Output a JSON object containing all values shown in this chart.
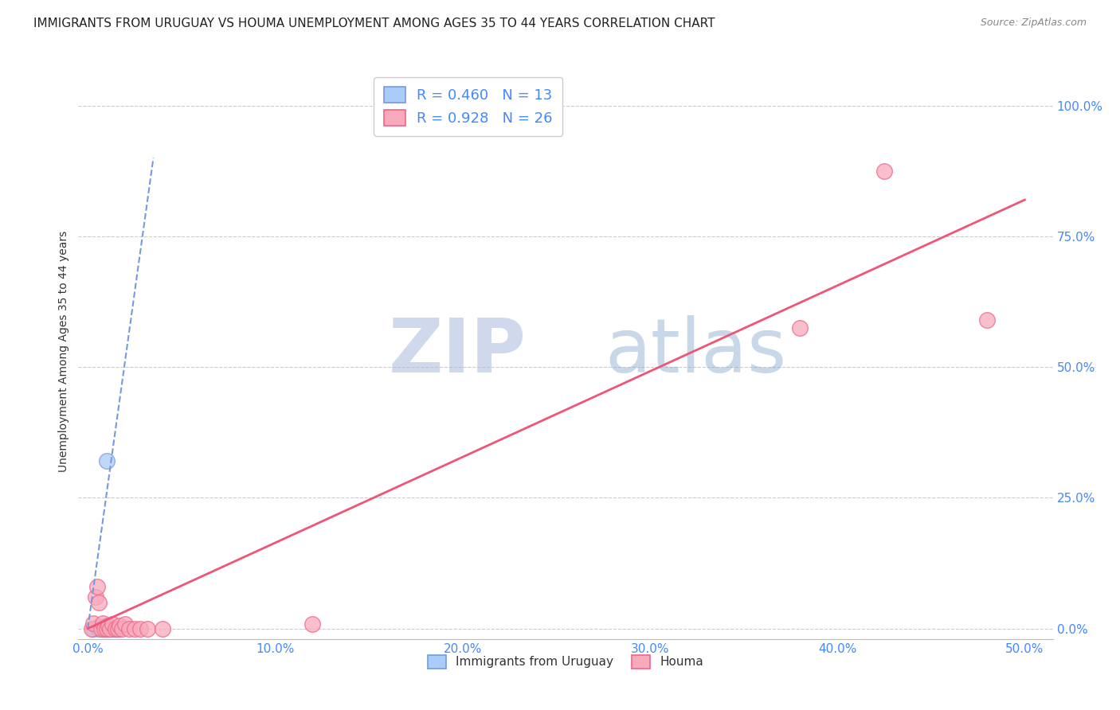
{
  "title": "IMMIGRANTS FROM URUGUAY VS HOUMA UNEMPLOYMENT AMONG AGES 35 TO 44 YEARS CORRELATION CHART",
  "source": "Source: ZipAtlas.com",
  "xlabel_ticks": [
    "0.0%",
    "10.0%",
    "20.0%",
    "30.0%",
    "40.0%",
    "50.0%"
  ],
  "ylabel_ticks": [
    "0.0%",
    "25.0%",
    "50.0%",
    "75.0%",
    "100.0%"
  ],
  "xlabel_vals": [
    0.0,
    0.1,
    0.2,
    0.3,
    0.4,
    0.5
  ],
  "ylabel_vals": [
    0.0,
    0.25,
    0.5,
    0.75,
    1.0
  ],
  "ylabel_label": "Unemployment Among Ages 35 to 44 years",
  "xlim": [
    -0.005,
    0.515
  ],
  "ylim": [
    -0.02,
    1.08
  ],
  "watermark_zip": "ZIP",
  "watermark_atlas": "atlas",
  "legend_blue_label": "Immigrants from Uruguay",
  "legend_pink_label": "Houma",
  "blue_R": "0.460",
  "blue_N": "13",
  "pink_R": "0.928",
  "pink_N": "26",
  "blue_scatter_x": [
    0.003,
    0.005,
    0.006,
    0.007,
    0.008,
    0.009,
    0.01,
    0.011,
    0.012,
    0.013,
    0.015,
    0.016,
    0.01
  ],
  "blue_scatter_y": [
    0.0,
    0.002,
    0.0,
    0.003,
    0.0,
    0.002,
    0.005,
    0.0,
    0.002,
    0.0,
    0.0,
    0.0,
    0.32
  ],
  "pink_scatter_x": [
    0.002,
    0.003,
    0.004,
    0.005,
    0.006,
    0.007,
    0.008,
    0.009,
    0.01,
    0.011,
    0.012,
    0.013,
    0.015,
    0.016,
    0.017,
    0.018,
    0.02,
    0.022,
    0.025,
    0.028,
    0.032,
    0.04,
    0.12,
    0.38,
    0.425,
    0.48
  ],
  "pink_scatter_y": [
    0.0,
    0.01,
    0.06,
    0.08,
    0.05,
    0.0,
    0.01,
    0.0,
    0.0,
    0.005,
    0.0,
    0.008,
    0.0,
    0.0,
    0.005,
    0.0,
    0.008,
    0.0,
    0.0,
    0.0,
    0.0,
    0.0,
    0.008,
    0.575,
    0.875,
    0.59
  ],
  "blue_line_x": [
    0.0,
    0.035
  ],
  "blue_line_y": [
    0.0,
    0.9
  ],
  "pink_line_x": [
    0.0,
    0.5
  ],
  "pink_line_y": [
    0.0,
    0.82
  ],
  "grid_color": "#cccccc",
  "background_color": "#ffffff",
  "blue_color": "#aaccf8",
  "blue_edge_color": "#7799dd",
  "blue_line_color": "#7799dd",
  "pink_color": "#f8aabc",
  "pink_edge_color": "#ee6688",
  "pink_line_color": "#ee5577",
  "title_fontsize": 11,
  "axis_label_fontsize": 10,
  "tick_fontsize": 11,
  "tick_color": "#4488ff",
  "source_fontsize": 9,
  "legend_fontsize": 13
}
